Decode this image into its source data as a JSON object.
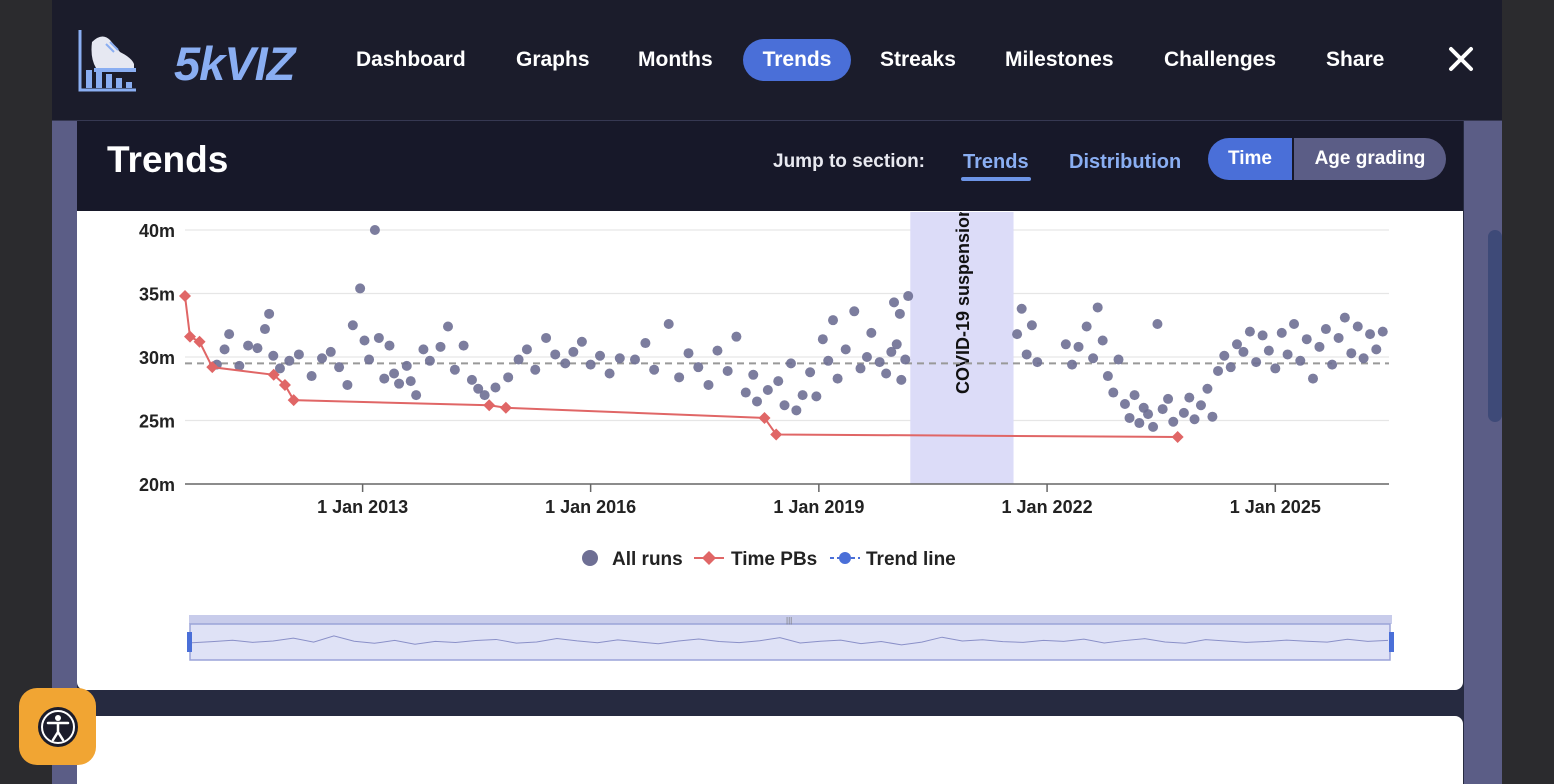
{
  "brand": {
    "name": "5kVIZ",
    "accent": "#8aaef2"
  },
  "nav": {
    "items": [
      {
        "label": "Dashboard",
        "active": false
      },
      {
        "label": "Graphs",
        "active": false
      },
      {
        "label": "Months",
        "active": false
      },
      {
        "label": "Trends",
        "active": true
      },
      {
        "label": "Streaks",
        "active": false
      },
      {
        "label": "Milestones",
        "active": false
      },
      {
        "label": "Challenges",
        "active": false
      },
      {
        "label": "Share",
        "active": false
      }
    ],
    "close_icon": "close-icon"
  },
  "section": {
    "title": "Trends",
    "jump_label": "Jump to section:",
    "jump_links": [
      "Trends",
      "Distribution"
    ],
    "toggle": {
      "options": [
        "Time",
        "Age grading"
      ],
      "selected": "Time"
    }
  },
  "chart_data": {
    "type": "scatter",
    "y_tick_labels": [
      "20m",
      "25m",
      "30m",
      "35m",
      "40m"
    ],
    "x_tick_labels": [
      "1 Jan 2013",
      "1 Jan 2016",
      "1 Jan 2019",
      "1 Jan 2022",
      "1 Jan 2025"
    ],
    "ylim": [
      20,
      40
    ],
    "xlim": [
      "2010-09-01",
      "2026-07-01"
    ],
    "band": {
      "label": "COVID-19 suspension",
      "start": "2020-03-15",
      "end": "2021-07-24"
    },
    "average_line": 29.5,
    "legend": [
      "All runs",
      "Time PBs",
      "Trend line"
    ],
    "legend_position": "bottom",
    "colors": {
      "runs": "#6e6f94",
      "pbs": "#e06666",
      "trend": "#4a6fd8",
      "band": "#dcdcf8"
    },
    "pbs": [
      {
        "x": "2010-09-01",
        "y": 34.8
      },
      {
        "x": "2010-09-25",
        "y": 31.6
      },
      {
        "x": "2010-11-10",
        "y": 31.2
      },
      {
        "x": "2011-01-10",
        "y": 29.2
      },
      {
        "x": "2011-11-01",
        "y": 28.6
      },
      {
        "x": "2011-12-25",
        "y": 27.8
      },
      {
        "x": "2012-02-05",
        "y": 26.6
      },
      {
        "x": "2014-09-01",
        "y": 26.2
      },
      {
        "x": "2014-11-20",
        "y": 26.0
      },
      {
        "x": "2018-04-15",
        "y": 25.2
      },
      {
        "x": "2018-06-10",
        "y": 23.9
      },
      {
        "x": "2023-09-20",
        "y": 23.7
      }
    ],
    "runs": [
      {
        "x": "2011-02-01",
        "y": 29.4
      },
      {
        "x": "2011-03-10",
        "y": 30.6
      },
      {
        "x": "2011-04-01",
        "y": 31.8
      },
      {
        "x": "2011-05-20",
        "y": 29.3
      },
      {
        "x": "2011-07-01",
        "y": 30.9
      },
      {
        "x": "2011-08-15",
        "y": 30.7
      },
      {
        "x": "2011-09-20",
        "y": 32.2
      },
      {
        "x": "2011-10-10",
        "y": 33.4
      },
      {
        "x": "2011-10-30",
        "y": 30.1
      },
      {
        "x": "2011-12-01",
        "y": 29.1
      },
      {
        "x": "2012-01-15",
        "y": 29.7
      },
      {
        "x": "2012-03-01",
        "y": 30.2
      },
      {
        "x": "2012-05-01",
        "y": 28.5
      },
      {
        "x": "2012-06-20",
        "y": 29.9
      },
      {
        "x": "2012-08-01",
        "y": 30.4
      },
      {
        "x": "2012-09-10",
        "y": 29.2
      },
      {
        "x": "2012-10-20",
        "y": 27.8
      },
      {
        "x": "2012-11-15",
        "y": 32.5
      },
      {
        "x": "2012-12-20",
        "y": 35.4
      },
      {
        "x": "2013-01-10",
        "y": 31.3
      },
      {
        "x": "2013-02-01",
        "y": 29.8
      },
      {
        "x": "2013-03-01",
        "y": 40.0
      },
      {
        "x": "2013-03-20",
        "y": 31.5
      },
      {
        "x": "2013-04-15",
        "y": 28.3
      },
      {
        "x": "2013-05-10",
        "y": 30.9
      },
      {
        "x": "2013-06-01",
        "y": 28.7
      },
      {
        "x": "2013-06-25",
        "y": 27.9
      },
      {
        "x": "2013-08-01",
        "y": 29.3
      },
      {
        "x": "2013-08-20",
        "y": 28.1
      },
      {
        "x": "2013-09-15",
        "y": 27.0
      },
      {
        "x": "2013-10-20",
        "y": 30.6
      },
      {
        "x": "2013-11-20",
        "y": 29.7
      },
      {
        "x": "2014-01-10",
        "y": 30.8
      },
      {
        "x": "2014-02-15",
        "y": 32.4
      },
      {
        "x": "2014-03-20",
        "y": 29.0
      },
      {
        "x": "2014-05-01",
        "y": 30.9
      },
      {
        "x": "2014-06-10",
        "y": 28.2
      },
      {
        "x": "2014-07-10",
        "y": 27.5
      },
      {
        "x": "2014-08-10",
        "y": 27.0
      },
      {
        "x": "2014-10-01",
        "y": 27.6
      },
      {
        "x": "2014-12-01",
        "y": 28.4
      },
      {
        "x": "2015-01-20",
        "y": 29.8
      },
      {
        "x": "2015-03-01",
        "y": 30.6
      },
      {
        "x": "2015-04-10",
        "y": 29.0
      },
      {
        "x": "2015-06-01",
        "y": 31.5
      },
      {
        "x": "2015-07-15",
        "y": 30.2
      },
      {
        "x": "2015-09-01",
        "y": 29.5
      },
      {
        "x": "2015-10-10",
        "y": 30.4
      },
      {
        "x": "2015-11-20",
        "y": 31.2
      },
      {
        "x": "2016-01-01",
        "y": 29.4
      },
      {
        "x": "2016-02-15",
        "y": 30.1
      },
      {
        "x": "2016-04-01",
        "y": 28.7
      },
      {
        "x": "2016-05-20",
        "y": 29.9
      },
      {
        "x": "2016-08-01",
        "y": 29.8
      },
      {
        "x": "2016-09-20",
        "y": 31.1
      },
      {
        "x": "2016-11-01",
        "y": 29.0
      },
      {
        "x": "2017-01-10",
        "y": 32.6
      },
      {
        "x": "2017-03-01",
        "y": 28.4
      },
      {
        "x": "2017-04-15",
        "y": 30.3
      },
      {
        "x": "2017-06-01",
        "y": 29.2
      },
      {
        "x": "2017-07-20",
        "y": 27.8
      },
      {
        "x": "2017-09-01",
        "y": 30.5
      },
      {
        "x": "2017-10-20",
        "y": 28.9
      },
      {
        "x": "2017-12-01",
        "y": 31.6
      },
      {
        "x": "2018-01-15",
        "y": 27.2
      },
      {
        "x": "2018-02-20",
        "y": 28.6
      },
      {
        "x": "2018-03-10",
        "y": 26.5
      },
      {
        "x": "2018-05-01",
        "y": 27.4
      },
      {
        "x": "2018-06-20",
        "y": 28.1
      },
      {
        "x": "2018-07-20",
        "y": 26.2
      },
      {
        "x": "2018-08-20",
        "y": 29.5
      },
      {
        "x": "2018-09-15",
        "y": 25.8
      },
      {
        "x": "2018-10-15",
        "y": 27.0
      },
      {
        "x": "2018-11-20",
        "y": 28.8
      },
      {
        "x": "2018-12-20",
        "y": 26.9
      },
      {
        "x": "2019-01-20",
        "y": 31.4
      },
      {
        "x": "2019-02-15",
        "y": 29.7
      },
      {
        "x": "2019-03-10",
        "y": 32.9
      },
      {
        "x": "2019-04-01",
        "y": 28.3
      },
      {
        "x": "2019-05-10",
        "y": 30.6
      },
      {
        "x": "2019-06-20",
        "y": 33.6
      },
      {
        "x": "2019-07-20",
        "y": 29.1
      },
      {
        "x": "2019-08-20",
        "y": 30.0
      },
      {
        "x": "2019-09-10",
        "y": 31.9
      },
      {
        "x": "2019-10-20",
        "y": 29.6
      },
      {
        "x": "2019-11-20",
        "y": 28.7
      },
      {
        "x": "2019-12-15",
        "y": 30.4
      },
      {
        "x": "2020-01-10",
        "y": 31.0
      },
      {
        "x": "2020-02-01",
        "y": 28.2
      },
      {
        "x": "2020-02-20",
        "y": 29.8
      },
      {
        "x": "2020-03-05",
        "y": 34.8
      },
      {
        "x": "2020-01-25",
        "y": 33.4
      },
      {
        "x": "2019-12-28",
        "y": 34.3
      },
      {
        "x": "2021-08-10",
        "y": 31.8
      },
      {
        "x": "2021-09-01",
        "y": 33.8
      },
      {
        "x": "2021-09-25",
        "y": 30.2
      },
      {
        "x": "2021-10-20",
        "y": 32.5
      },
      {
        "x": "2021-11-15",
        "y": 29.6
      },
      {
        "x": "2022-04-01",
        "y": 31.0
      },
      {
        "x": "2022-05-01",
        "y": 29.4
      },
      {
        "x": "2022-06-01",
        "y": 30.8
      },
      {
        "x": "2022-07-10",
        "y": 32.4
      },
      {
        "x": "2022-08-10",
        "y": 29.9
      },
      {
        "x": "2022-09-01",
        "y": 33.9
      },
      {
        "x": "2022-09-25",
        "y": 31.3
      },
      {
        "x": "2022-10-20",
        "y": 28.5
      },
      {
        "x": "2022-11-15",
        "y": 27.2
      },
      {
        "x": "2022-12-10",
        "y": 29.8
      },
      {
        "x": "2023-01-10",
        "y": 26.3
      },
      {
        "x": "2023-02-01",
        "y": 25.2
      },
      {
        "x": "2023-02-25",
        "y": 27.0
      },
      {
        "x": "2023-03-20",
        "y": 24.8
      },
      {
        "x": "2023-04-10",
        "y": 26.0
      },
      {
        "x": "2023-05-01",
        "y": 25.5
      },
      {
        "x": "2023-05-25",
        "y": 24.5
      },
      {
        "x": "2023-06-15",
        "y": 32.6
      },
      {
        "x": "2023-07-10",
        "y": 25.9
      },
      {
        "x": "2023-08-05",
        "y": 26.7
      },
      {
        "x": "2023-08-30",
        "y": 24.9
      },
      {
        "x": "2023-10-20",
        "y": 25.6
      },
      {
        "x": "2023-11-15",
        "y": 26.8
      },
      {
        "x": "2023-12-10",
        "y": 25.1
      },
      {
        "x": "2024-01-10",
        "y": 26.2
      },
      {
        "x": "2024-02-10",
        "y": 27.5
      },
      {
        "x": "2024-03-05",
        "y": 25.3
      },
      {
        "x": "2024-04-01",
        "y": 28.9
      },
      {
        "x": "2024-05-01",
        "y": 30.1
      },
      {
        "x": "2024-06-01",
        "y": 29.2
      },
      {
        "x": "2024-07-01",
        "y": 31.0
      },
      {
        "x": "2024-08-01",
        "y": 30.4
      },
      {
        "x": "2024-09-01",
        "y": 32.0
      },
      {
        "x": "2024-10-01",
        "y": 29.6
      },
      {
        "x": "2024-11-01",
        "y": 31.7
      },
      {
        "x": "2024-12-01",
        "y": 30.5
      },
      {
        "x": "2025-01-01",
        "y": 29.1
      },
      {
        "x": "2025-02-01",
        "y": 31.9
      },
      {
        "x": "2025-03-01",
        "y": 30.2
      },
      {
        "x": "2025-04-01",
        "y": 32.6
      },
      {
        "x": "2025-05-01",
        "y": 29.7
      },
      {
        "x": "2025-06-01",
        "y": 31.4
      },
      {
        "x": "2025-07-01",
        "y": 28.3
      },
      {
        "x": "2025-08-01",
        "y": 30.8
      },
      {
        "x": "2025-09-01",
        "y": 32.2
      },
      {
        "x": "2025-10-01",
        "y": 29.4
      },
      {
        "x": "2025-11-01",
        "y": 31.5
      },
      {
        "x": "2025-12-01",
        "y": 33.1
      },
      {
        "x": "2026-01-01",
        "y": 30.3
      },
      {
        "x": "2026-02-01",
        "y": 32.4
      },
      {
        "x": "2026-03-01",
        "y": 29.9
      },
      {
        "x": "2026-04-01",
        "y": 31.8
      },
      {
        "x": "2026-05-01",
        "y": 30.6
      },
      {
        "x": "2026-06-01",
        "y": 32.0
      }
    ],
    "navigator_series": [
      29.5,
      30.2,
      31.1,
      29.8,
      30.6,
      32.4,
      29.9,
      33.8,
      30.5,
      29.2,
      31.0,
      28.6,
      30.4,
      29.7,
      30.9,
      31.6,
      29.3,
      30.0,
      32.2,
      30.7,
      29.5,
      31.3,
      30.1,
      28.9,
      30.6,
      31.9,
      30.3,
      29.6,
      30.8,
      32.7,
      29.4,
      30.5,
      31.2,
      29.0,
      30.3,
      28.2,
      29.9,
      33.0,
      30.6,
      31.4,
      30.2,
      29.8,
      31.0,
      30.4,
      31.8,
      29.4,
      30.9,
      32.1,
      30.0,
      29.2,
      31.5,
      30.6,
      29.8,
      30.3,
      31.2,
      30.5,
      29.9,
      31.7,
      30.4,
      31.0
    ]
  }
}
